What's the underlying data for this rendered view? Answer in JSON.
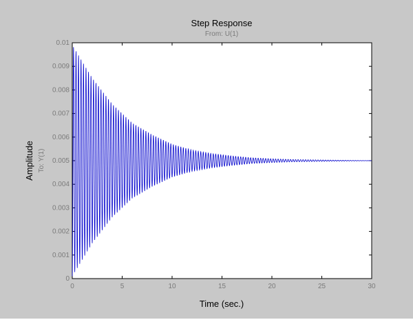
{
  "chart_data": {
    "type": "line",
    "title": "Step Response",
    "subtitle": "From: U(1)",
    "xlabel": "Time (sec.)",
    "ylabel": "Amplitude",
    "ylabel_secondary": "To: Y(1)",
    "xlim": [
      0,
      30
    ],
    "ylim": [
      0,
      0.01
    ],
    "xticks": [
      0,
      5,
      10,
      15,
      20,
      25,
      30
    ],
    "xtick_labels": [
      "0",
      "5",
      "10",
      "15",
      "20",
      "25",
      "30"
    ],
    "yticks": [
      0,
      0.001,
      0.002,
      0.003,
      0.004,
      0.005,
      0.006,
      0.007,
      0.008,
      0.009,
      0.01
    ],
    "ytick_labels": [
      "0",
      "0.001",
      "0.002",
      "0.003",
      "0.004",
      "0.005",
      "0.006",
      "0.007",
      "0.008",
      "0.009",
      "0.01"
    ],
    "grid": false,
    "series": [
      {
        "steady_state": 0.005,
        "initial_value": 0,
        "peak": 0.0099,
        "envelope": {
          "t": [
            0,
            2,
            4,
            6,
            8,
            10,
            12,
            14,
            16,
            18,
            20,
            22,
            25,
            30
          ],
          "upper": [
            0.0099,
            0.0085,
            0.0074,
            0.0066,
            0.0061,
            0.0057,
            0.00545,
            0.0053,
            0.0052,
            0.00512,
            0.00508,
            0.00505,
            0.00503,
            0.005
          ]
        },
        "oscillation_period_sec": 0.25,
        "color": "#0000cc"
      }
    ]
  },
  "colors": {
    "figure_bg": "#c8c8c8",
    "axes_bg": "#ffffff",
    "line": "#0000cc",
    "tick_text": "#7a7a7a",
    "label_text": "#000000"
  }
}
